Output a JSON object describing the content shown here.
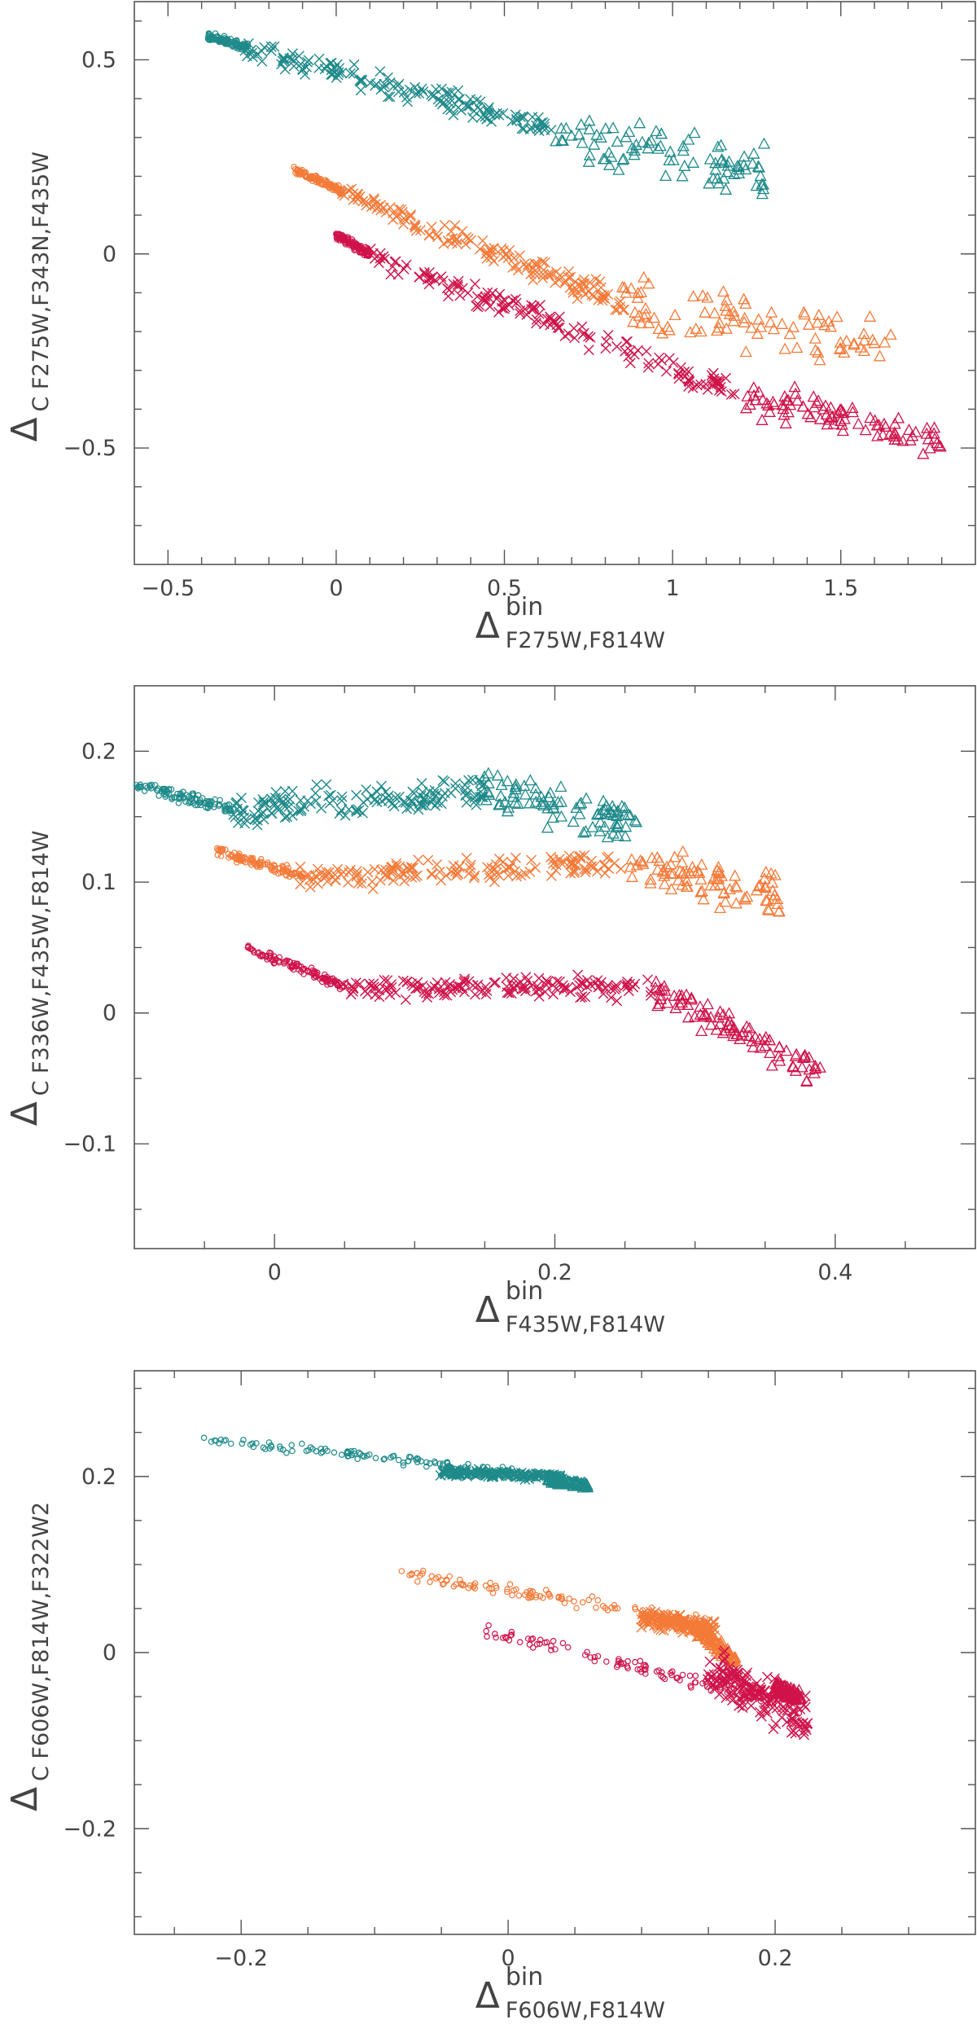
{
  "figure": {
    "colors": {
      "teal": "#1f8a8a",
      "orange": "#f47a38",
      "crimson": "#d0134a"
    }
  },
  "chart_data": [
    {
      "type": "scatter",
      "xlim": [
        -0.6,
        1.9
      ],
      "ylim": [
        -0.8,
        0.65
      ],
      "xticks_major": [
        -0.5,
        0,
        0.5,
        1,
        1.5
      ],
      "xtick_labels": [
        "−0.5",
        "0",
        "0.5",
        "1",
        "1.5"
      ],
      "xticks_minor": [
        -0.4,
        -0.3,
        -0.2,
        -0.1,
        0.1,
        0.2,
        0.3,
        0.4,
        0.6,
        0.7,
        0.8,
        0.9,
        1.1,
        1.2,
        1.3,
        1.4,
        1.6,
        1.7,
        1.8
      ],
      "yticks_major": [
        -0.5,
        0,
        0.5
      ],
      "ytick_labels": [
        "−0.5",
        "0",
        "0.5"
      ],
      "yticks_minor": [
        -0.7,
        -0.6,
        -0.4,
        -0.3,
        -0.2,
        -0.1,
        0.1,
        0.2,
        0.3,
        0.4,
        0.6
      ],
      "xlabel": {
        "main": "Δ",
        "sup": "bin",
        "sub": "F275W,F814W"
      },
      "ylabel": {
        "main": "Δ",
        "sub": "C F275W,F343N,F435W"
      },
      "grid": false,
      "series": [
        {
          "color": "teal",
          "dot": {
            "x": [
              -0.38,
              -0.26
            ],
            "y": [
              0.56,
              0.53
            ]
          },
          "cross": {
            "x": [
              -0.26,
              0.65
            ],
            "y": [
              0.53,
              0.32
            ]
          },
          "triangle": {
            "x": [
              0.65,
              1.28
            ],
            "y": [
              0.32,
              0.2
            ]
          },
          "spread": [
            0.012,
            0.035,
            0.08
          ]
        },
        {
          "color": "orange",
          "dot": {
            "x": [
              -0.13,
              0.02
            ],
            "y": [
              0.22,
              0.16
            ]
          },
          "cross": {
            "x": [
              0.02,
              0.85
            ],
            "y": [
              0.16,
              -0.13
            ]
          },
          "triangle": {
            "x": [
              0.85,
              1.65
            ],
            "y": [
              -0.13,
              -0.23
            ]
          },
          "spread": [
            0.012,
            0.035,
            0.09
          ]
        },
        {
          "color": "crimson",
          "dot": {
            "x": [
              0.0,
              0.1
            ],
            "y": [
              0.05,
              0.0
            ]
          },
          "cross": {
            "x": [
              0.1,
              1.2
            ],
            "y": [
              0.0,
              -0.36
            ]
          },
          "triangle": {
            "x": [
              1.2,
              1.8
            ],
            "y": [
              -0.36,
              -0.48
            ]
          },
          "spread": [
            0.015,
            0.035,
            0.05
          ]
        }
      ]
    },
    {
      "type": "scatter",
      "xlim": [
        -0.1,
        0.5
      ],
      "ylim": [
        -0.18,
        0.25
      ],
      "xticks_major": [
        0,
        0.2,
        0.4
      ],
      "xtick_labels": [
        "0",
        "0.2",
        "0.4"
      ],
      "xticks_minor": [
        -0.05,
        0.05,
        0.1,
        0.15,
        0.25,
        0.3,
        0.35,
        0.45
      ],
      "yticks_major": [
        -0.1,
        0,
        0.1,
        0.2
      ],
      "ytick_labels": [
        "−0.1",
        "0",
        "0.1",
        "0.2"
      ],
      "yticks_minor": [
        -0.15,
        -0.05,
        0.05,
        0.15
      ],
      "xlabel": {
        "main": "Δ",
        "sup": "bin",
        "sub": "F435W,F814W"
      },
      "ylabel": {
        "main": "Δ",
        "sub": "C F336W,F435W,F814W"
      },
      "grid": false,
      "series": [
        {
          "color": "teal",
          "dot": {
            "x": [
              -0.1,
              -0.03
            ],
            "y": [
              0.175,
              0.155
            ]
          },
          "cross": {
            "x": [
              -0.03,
              0.15
            ],
            "y": [
              0.155,
              0.17
            ]
          },
          "triangle": {
            "x": [
              0.15,
              0.26
            ],
            "y": [
              0.17,
              0.145
            ]
          },
          "spread": [
            0.006,
            0.015,
            0.02
          ]
        },
        {
          "color": "orange",
          "dot": {
            "x": [
              -0.04,
              0.02
            ],
            "y": [
              0.123,
              0.105
            ]
          },
          "cross": {
            "x": [
              0.02,
              0.25
            ],
            "y": [
              0.105,
              0.115
            ]
          },
          "triangle": {
            "x": [
              0.25,
              0.36
            ],
            "y": [
              0.115,
              0.09
            ]
          },
          "spread": [
            0.005,
            0.012,
            0.02
          ]
        },
        {
          "color": "crimson",
          "dot": {
            "x": [
              -0.02,
              0.05
            ],
            "y": [
              0.05,
              0.02
            ]
          },
          "cross": {
            "x": [
              0.05,
              0.27
            ],
            "y": [
              0.02,
              0.02
            ]
          },
          "triangle": {
            "x": [
              0.27,
              0.39
            ],
            "y": [
              0.02,
              -0.045
            ]
          },
          "spread": [
            0.004,
            0.01,
            0.015
          ]
        }
      ]
    },
    {
      "type": "scatter",
      "xlim": [
        -0.28,
        0.35
      ],
      "ylim": [
        -0.32,
        0.32
      ],
      "xticks_major": [
        -0.2,
        0,
        0.2
      ],
      "xtick_labels": [
        "−0.2",
        "0",
        "0.2"
      ],
      "xticks_minor": [
        -0.25,
        -0.15,
        -0.1,
        -0.05,
        0.05,
        0.1,
        0.15,
        0.25,
        0.3
      ],
      "yticks_major": [
        -0.2,
        0,
        0.2
      ],
      "ytick_labels": [
        "−0.2",
        "0",
        "0.2"
      ],
      "yticks_minor": [
        -0.3,
        -0.25,
        -0.15,
        -0.1,
        -0.05,
        0.05,
        0.1,
        0.15,
        0.25,
        0.3
      ],
      "xlabel": {
        "main": "Δ",
        "sup": "bin",
        "sub": "F606W,F814W"
      },
      "ylabel": {
        "main": "Δ",
        "sub": "C F606W,F814W,F322W2"
      },
      "grid": false,
      "series": [
        {
          "color": "teal",
          "dot": {
            "x": [
              -0.23,
              0.04
            ],
            "y": [
              0.243,
              0.2
            ]
          },
          "cross": {
            "x": [
              -0.05,
              0.04
            ],
            "y": [
              0.205,
              0.2
            ]
          },
          "triangle": {
            "x": [
              0.03,
              0.06
            ],
            "y": [
              0.195,
              0.19
            ]
          },
          "spread": [
            0.006,
            0.005,
            0.004
          ]
        },
        {
          "color": "orange",
          "dot": {
            "x": [
              -0.08,
              0.15
            ],
            "y": [
              0.09,
              0.035
            ]
          },
          "cross": {
            "x": [
              0.1,
              0.155
            ],
            "y": [
              0.04,
              0.025
            ]
          },
          "triangle": {
            "x": [
              0.14,
              0.17
            ],
            "y": [
              0.03,
              -0.01
            ]
          },
          "spread": [
            0.008,
            0.012,
            0.01
          ]
        },
        {
          "color": "crimson",
          "dot": {
            "x": [
              -0.02,
              0.22
            ],
            "y": [
              0.025,
              -0.06
            ]
          },
          "cross": {
            "x": [
              0.15,
              0.225
            ],
            "y": [
              -0.02,
              -0.08
            ]
          },
          "triangle": {
            "x": [
              0.2,
              0.22
            ],
            "y": [
              -0.04,
              -0.05
            ]
          },
          "spread": [
            0.01,
            0.03,
            0.01
          ]
        }
      ]
    }
  ]
}
